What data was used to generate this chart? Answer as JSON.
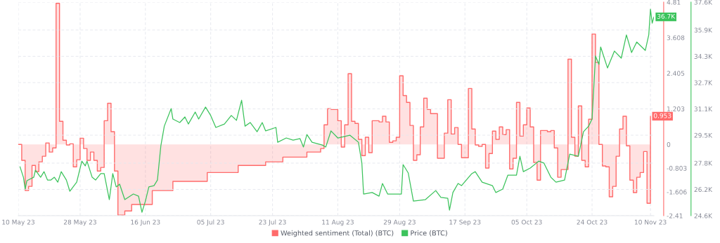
{
  "chart_data": {
    "type": "line",
    "xlim": [
      "2023-05-10",
      "2023-11-11"
    ],
    "xticks": [
      {
        "value": "2023-05-10",
        "label": "10 May 23"
      },
      {
        "value": "2023-05-28",
        "label": "28 May 23"
      },
      {
        "value": "2023-06-16",
        "label": "16 Jun 23"
      },
      {
        "value": "2023-07-05",
        "label": "05 Jul 23"
      },
      {
        "value": "2023-07-23",
        "label": "23 Jul 23"
      },
      {
        "value": "2023-08-11",
        "label": "11 Aug 23"
      },
      {
        "value": "2023-08-29",
        "label": "29 Aug 23"
      },
      {
        "value": "2023-09-17",
        "label": "17 Sep 23"
      },
      {
        "value": "2023-10-05",
        "label": "05 Oct 23"
      },
      {
        "value": "2023-10-24",
        "label": "24 Oct 23"
      },
      {
        "value": "2023-11-10",
        "label": "10 Nov 23"
      }
    ],
    "ylim": [
      -2.41,
      4.81
    ],
    "yticks": [
      4.81,
      3.608,
      2.405,
      1.203,
      0,
      -0.803,
      -1.606,
      -2.41
    ],
    "y2lim": [
      24600,
      37600
    ],
    "y2ticks": [
      {
        "value": 37600,
        "label": "37.6K"
      },
      {
        "value": 35900,
        "label": "35.9K"
      },
      {
        "value": 34300,
        "label": "34.3K"
      },
      {
        "value": 32700,
        "label": "32.7K"
      },
      {
        "value": 31100,
        "label": "31.1K"
      },
      {
        "value": 29500,
        "label": "29.5K"
      },
      {
        "value": 27800,
        "label": "27.8K"
      },
      {
        "value": 26200,
        "label": "26.2K"
      },
      {
        "value": 24600,
        "label": "24.6K"
      }
    ],
    "grid": true,
    "legend": "bottom",
    "series": [
      {
        "name": "Weighted sentiment (Total) (BTC)",
        "type": "step",
        "axis": "y",
        "color": "#ff6b6b",
        "x": [
          "2023-05-10",
          "2023-05-11",
          "2023-05-12",
          "2023-05-13",
          "2023-05-14",
          "2023-05-15",
          "2023-05-16",
          "2023-05-17",
          "2023-05-18",
          "2023-05-19",
          "2023-05-20",
          "2023-05-21",
          "2023-05-22",
          "2023-05-23",
          "2023-05-24",
          "2023-05-25",
          "2023-05-26",
          "2023-05-27",
          "2023-05-28",
          "2023-05-29",
          "2023-05-30",
          "2023-05-31",
          "2023-06-01",
          "2023-06-02",
          "2023-06-03",
          "2023-06-04",
          "2023-06-05",
          "2023-06-06",
          "2023-06-07",
          "2023-06-08",
          "2023-06-10",
          "2023-06-12",
          "2023-06-18",
          "2023-06-24",
          "2023-07-04",
          "2023-07-13",
          "2023-07-21",
          "2023-07-26",
          "2023-08-02",
          "2023-08-06",
          "2023-08-07",
          "2023-08-08",
          "2023-08-09",
          "2023-08-11",
          "2023-08-12",
          "2023-08-13",
          "2023-08-14",
          "2023-08-15",
          "2023-08-16",
          "2023-08-17",
          "2023-08-18",
          "2023-08-19",
          "2023-08-20",
          "2023-08-21",
          "2023-08-23",
          "2023-08-24",
          "2023-08-25",
          "2023-08-26",
          "2023-08-27",
          "2023-08-28",
          "2023-08-29",
          "2023-08-30",
          "2023-08-31",
          "2023-09-01",
          "2023-09-02",
          "2023-09-03",
          "2023-09-04",
          "2023-09-05",
          "2023-09-06",
          "2023-09-07",
          "2023-09-09",
          "2023-09-11",
          "2023-09-12",
          "2023-09-13",
          "2023-09-14",
          "2023-09-15",
          "2023-09-16",
          "2023-09-18",
          "2023-09-19",
          "2023-09-20",
          "2023-09-21",
          "2023-09-22",
          "2023-09-23",
          "2023-09-24",
          "2023-09-25",
          "2023-09-26",
          "2023-09-27",
          "2023-09-28",
          "2023-09-29",
          "2023-09-30",
          "2023-10-01",
          "2023-10-02",
          "2023-10-03",
          "2023-10-04",
          "2023-10-05",
          "2023-10-06",
          "2023-10-07",
          "2023-10-08",
          "2023-10-09",
          "2023-10-11",
          "2023-10-12",
          "2023-10-13",
          "2023-10-14",
          "2023-10-15",
          "2023-10-17",
          "2023-10-18",
          "2023-10-19",
          "2023-10-20",
          "2023-10-21",
          "2023-10-22",
          "2023-10-23",
          "2023-10-24",
          "2023-10-25",
          "2023-10-26",
          "2023-10-27",
          "2023-10-28",
          "2023-10-29",
          "2023-10-30",
          "2023-10-31",
          "2023-11-01",
          "2023-11-02",
          "2023-11-03",
          "2023-11-04",
          "2023-11-05",
          "2023-11-06",
          "2023-11-07",
          "2023-11-08",
          "2023-11-09",
          "2023-11-10"
        ],
        "values": [
          0,
          -0.54,
          -1.56,
          -1.42,
          -0.71,
          -0.92,
          -0.59,
          -0.4,
          0.05,
          -0.26,
          -0.12,
          4.77,
          0.78,
          0.14,
          -0.02,
          0.02,
          -0.76,
          -0.52,
          0.21,
          -0.14,
          -0.54,
          -0.26,
          -0.54,
          -0.9,
          -0.78,
          0.8,
          1.39,
          0.43,
          -0.9,
          -2.39,
          -2.25,
          -2.03,
          -1.56,
          -1.25,
          -0.95,
          -0.71,
          -0.59,
          -0.43,
          -0.26,
          -0.14,
          0.66,
          1.21,
          1.18,
          0.8,
          -0.09,
          0.66,
          2.39,
          0.78,
          0.71,
          0.17,
          -0.38,
          0.24,
          -0.28,
          0.8,
          0.76,
          0.95,
          0.76,
          0.07,
          0.12,
          0.24,
          2.32,
          1.65,
          1.42,
          0.64,
          -0.54,
          -0.35,
          0.59,
          1.56,
          1.18,
          1.04,
          -0.47,
          0.38,
          1.51,
          0.35,
          0.57,
          0.0,
          -0.45,
          1.89,
          0.52,
          -0.02,
          -0.07,
          0.0,
          -0.8,
          -0.31,
          0.45,
          0.17,
          0.59,
          0.33,
          0.5,
          -0.83,
          -0.47,
          1.42,
          0.28,
          0.66,
          1.23,
          0.59,
          -0.61,
          -1.21,
          0.47,
          0.43,
          0.47,
          -0.12,
          -1.11,
          -0.85,
          2.88,
          0.24,
          -0.4,
          1.3,
          -0.54,
          -0.76,
          0.85,
          3.73,
          2.77,
          0,
          -0.73,
          -0.76,
          -1.77,
          -1.42,
          -0.4,
          0.52,
          0.95,
          -0.05,
          -1.21,
          -1.63,
          -1.11,
          -0.95,
          -0.24,
          -1.99,
          0.953
        ],
        "value_labels": [
          null,
          null,
          null,
          null,
          null,
          null,
          null,
          null,
          null,
          null,
          null,
          null,
          null,
          null,
          null,
          null,
          null,
          null,
          null,
          null,
          null,
          null,
          null,
          null,
          null,
          null,
          null,
          null,
          null,
          null,
          null,
          null,
          null,
          null,
          null,
          null,
          null,
          null,
          null,
          null,
          null,
          null,
          null,
          null,
          null,
          null,
          null,
          null,
          null,
          null,
          null,
          null,
          null,
          null,
          null,
          null,
          null,
          null,
          null,
          null,
          null,
          null,
          null,
          null,
          null,
          null,
          null,
          null,
          null,
          null,
          null,
          null,
          null,
          null,
          null,
          null,
          null,
          null,
          null,
          null,
          null,
          null,
          null,
          null,
          null,
          null,
          null,
          null,
          null,
          null,
          null,
          null,
          null,
          null,
          null,
          null,
          null,
          null,
          null,
          null,
          null,
          null,
          null,
          null,
          null,
          null,
          null,
          null,
          null,
          null,
          null,
          null,
          null,
          null,
          null,
          null,
          null,
          null,
          null,
          null,
          null,
          null,
          null,
          null,
          null,
          null,
          null,
          null,
          "0.953"
        ]
      },
      {
        "name": "Price (BTC)",
        "axis": "y2",
        "color": "#3cc35c",
        "x": [
          "2023-05-10T12:00",
          "2023-05-11T12:00",
          "2023-05-12",
          "2023-05-12T12:00",
          "2023-05-14T12:00",
          "2023-05-15",
          "2023-05-16T12:00",
          "2023-05-17T12:00",
          "2023-05-18T12:00",
          "2023-05-19T12:00",
          "2023-05-20T12:00",
          "2023-05-21T12:00",
          "2023-05-22T12:00",
          "2023-05-24",
          "2023-05-25",
          "2023-05-27",
          "2023-05-28T12:00",
          "2023-05-29T12:00",
          "2023-05-30",
          "2023-05-31T12:00",
          "2023-06-01T12:00",
          "2023-06-03",
          "2023-06-04",
          "2023-06-05T12:00",
          "2023-06-06T12:00",
          "2023-06-07T12:00",
          "2023-06-08T12:00",
          "2023-06-10",
          "2023-06-12T12:00",
          "2023-06-14",
          "2023-06-15",
          "2023-06-16",
          "2023-06-17",
          "2023-06-18T12:00",
          "2023-06-19T12:00",
          "2023-06-20T12:00",
          "2023-06-21T12:00",
          "2023-06-23T12:00",
          "2023-06-24",
          "2023-06-26",
          "2023-06-27T12:00",
          "2023-06-28T12:00",
          "2023-06-30T12:00",
          "2023-07-01T12:00",
          "2023-07-03T12:00",
          "2023-07-05",
          "2023-07-06T12:00",
          "2023-07-09",
          "2023-07-11",
          "2023-07-12T12:00",
          "2023-07-14",
          "2023-07-15",
          "2023-07-16T12:00",
          "2023-07-18T12:00",
          "2023-07-20",
          "2023-07-21",
          "2023-07-24",
          "2023-07-24T12:00",
          "2023-07-27",
          "2023-07-29",
          "2023-07-31",
          "2023-08-01",
          "2023-08-02",
          "2023-08-03T12:00",
          "2023-08-06T12:00",
          "2023-08-07T12:00",
          "2023-08-09",
          "2023-08-11",
          "2023-08-14T12:00",
          "2023-08-17",
          "2023-08-18",
          "2023-08-18T12:00",
          "2023-08-21",
          "2023-08-23",
          "2023-08-24",
          "2023-08-25T12:00",
          "2023-08-29T12:00",
          "2023-08-30",
          "2023-08-31T12:00",
          "2023-09-02",
          "2023-09-05T12:00",
          "2023-09-08T12:00",
          "2023-09-10",
          "2023-09-12",
          "2023-09-12T12:00",
          "2023-09-13T12:00",
          "2023-09-15",
          "2023-09-16",
          "2023-09-19",
          "2023-09-20",
          "2023-09-22",
          "2023-09-25",
          "2023-09-26",
          "2023-09-28",
          "2023-09-29T12:00",
          "2023-10-02",
          "2023-10-03",
          "2023-10-04",
          "2023-10-06",
          "2023-10-08T12:00",
          "2023-10-10",
          "2023-10-12",
          "2023-10-13T12:00",
          "2023-10-16",
          "2023-10-17T12:00",
          "2023-10-20",
          "2023-10-21T12:00",
          "2023-10-23",
          "2023-10-24",
          "2023-10-25",
          "2023-10-26",
          "2023-10-26T12:00",
          "2023-10-28T12:00",
          "2023-10-30T12:00",
          "2023-11-01T12:00",
          "2023-11-03",
          "2023-11-04T12:00",
          "2023-11-06",
          "2023-11-08T12:00",
          "2023-11-09T12:00",
          "2023-11-10",
          "2023-11-10T12:00",
          "2023-11-11"
        ],
        "values": [
          27580,
          26940,
          26220,
          26730,
          26940,
          27370,
          26940,
          27280,
          26770,
          26770,
          26940,
          26640,
          27280,
          26770,
          26090,
          26640,
          27920,
          27630,
          27920,
          26940,
          26770,
          27160,
          27160,
          25580,
          27160,
          26350,
          26520,
          25580,
          25920,
          25790,
          24810,
          25490,
          26350,
          26430,
          26770,
          28860,
          30050,
          31120,
          30480,
          30270,
          30610,
          30180,
          30910,
          30480,
          31210,
          30700,
          29970,
          30180,
          30700,
          30400,
          31630,
          30050,
          30270,
          29710,
          30270,
          29760,
          29970,
          29070,
          29330,
          29200,
          29290,
          28780,
          29540,
          29070,
          28900,
          28780,
          29760,
          29330,
          29500,
          29070,
          27800,
          25920,
          26010,
          25790,
          26560,
          25920,
          25920,
          27710,
          27200,
          25490,
          25580,
          26130,
          25710,
          25660,
          24940,
          26010,
          26560,
          26430,
          27160,
          27280,
          26640,
          26430,
          26010,
          26220,
          27070,
          27070,
          28220,
          27280,
          27500,
          27920,
          27800,
          26940,
          26640,
          26770,
          28350,
          28220,
          29710,
          30050,
          30480,
          34320,
          33810,
          34870,
          33590,
          34620,
          34190,
          35600,
          34530,
          35170,
          34660,
          35600,
          37170,
          36320,
          36700
        ],
        "value_labels": [
          null,
          null,
          null,
          null,
          null,
          null,
          null,
          null,
          null,
          null,
          null,
          null,
          null,
          null,
          null,
          null,
          null,
          null,
          null,
          null,
          null,
          null,
          null,
          null,
          null,
          null,
          null,
          null,
          null,
          null,
          null,
          null,
          null,
          null,
          null,
          null,
          null,
          null,
          null,
          null,
          null,
          null,
          null,
          null,
          null,
          null,
          null,
          null,
          null,
          null,
          null,
          null,
          null,
          null,
          null,
          null,
          null,
          null,
          null,
          null,
          null,
          null,
          null,
          null,
          null,
          null,
          null,
          null,
          null,
          null,
          null,
          null,
          null,
          null,
          null,
          null,
          null,
          null,
          null,
          null,
          null,
          null,
          null,
          null,
          null,
          null,
          null,
          null,
          null,
          null,
          null,
          null,
          null,
          null,
          null,
          null,
          null,
          null,
          null,
          null,
          null,
          null,
          null,
          null,
          null,
          null,
          null,
          null,
          null,
          null,
          null,
          null,
          null,
          null,
          null,
          null,
          null,
          null,
          null,
          null,
          null,
          null,
          "36.7K"
        ]
      }
    ]
  }
}
